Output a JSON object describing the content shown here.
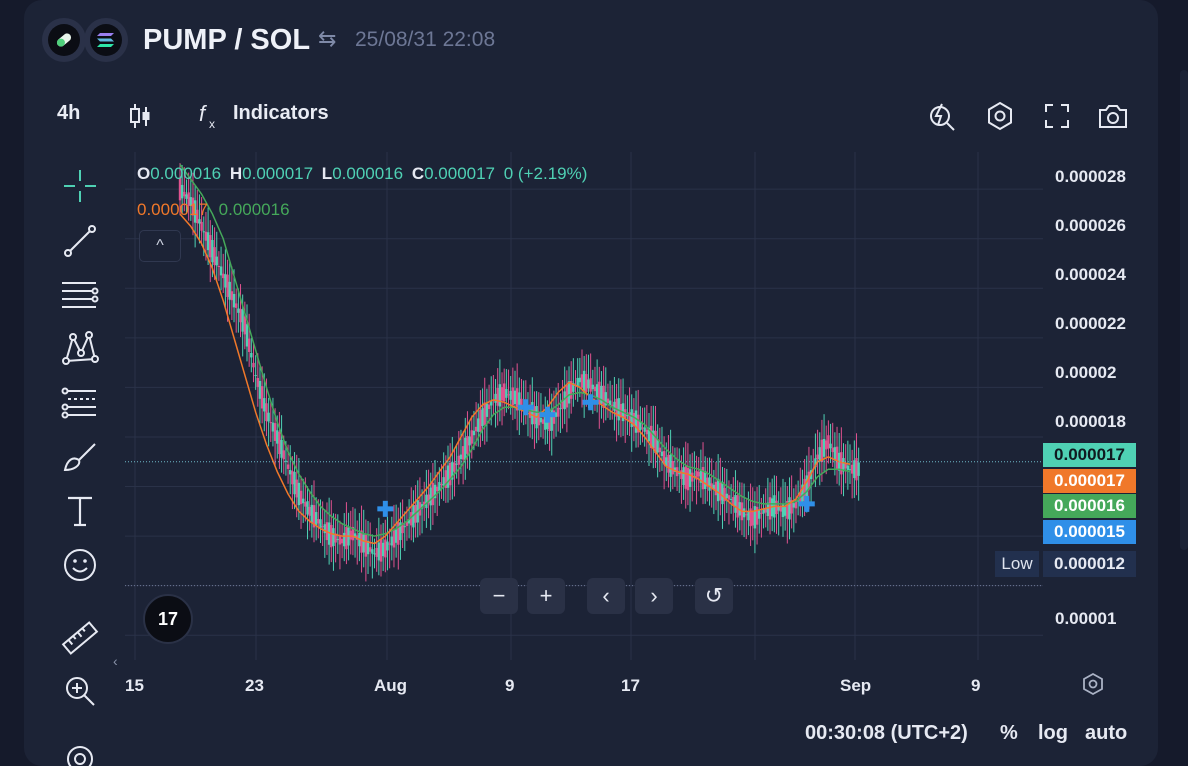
{
  "header": {
    "title": "PUMP / SOL",
    "swap_icon": "⇆",
    "timestamp": "25/08/31 22:08"
  },
  "toolbar": {
    "interval": "4h",
    "indicators_label": "Indicators",
    "icons": [
      "candles-icon",
      "fx-icon",
      "alert-icon",
      "settings-icon",
      "fullscreen-icon",
      "camera-icon"
    ]
  },
  "legend": {
    "o_label": "O",
    "o_value": "0.000016",
    "h_label": "H",
    "h_value": "0.000017",
    "l_label": "L",
    "l_value": "0.000016",
    "c_label": "C",
    "c_value": "0.000017",
    "change": "0 (+2.19%)",
    "ma_fast": "0.000017",
    "ma_slow": "0.000016",
    "collapse_icon": "^"
  },
  "y_axis": {
    "ticks": [
      "0.000028",
      "0.000026",
      "0.000024",
      "0.000022",
      "0.00002",
      "0.000018",
      "0.00001"
    ],
    "tags": {
      "price": "0.000017",
      "ma_fast": "0.000017",
      "ma_slow": "0.000016",
      "marker": "0.000015"
    },
    "low_label": "Low",
    "low_value": "0.000012"
  },
  "x_axis": {
    "ticks": [
      "15",
      "23",
      "Aug",
      "9",
      "17",
      "Sep",
      "9"
    ]
  },
  "nav": {
    "zoom_out": "−",
    "zoom_in": "+",
    "prev": "‹",
    "next": "›",
    "reset": "↺"
  },
  "footer": {
    "clock": "00:30:08 (UTC+2)",
    "percent": "%",
    "log": "log",
    "auto": "auto"
  },
  "logo_text": "17",
  "colors": {
    "up": "#4fd1b4",
    "down": "#e0528f",
    "ma_fast": "#f0782a",
    "ma_slow": "#45a85a",
    "marker": "#2f8fe8",
    "price_tag": "#4fd1b4",
    "panel": "#1c2336"
  },
  "chart_data": {
    "type": "candlestick",
    "series": [
      {
        "name": "price",
        "values": [
          2.8e-05,
          2.75e-05,
          2.65e-05,
          2.55e-05,
          2.45e-05,
          2.35e-05,
          2.25e-05,
          2.05e-05,
          1.9e-05,
          1.8e-05,
          1.68e-05,
          1.57e-05,
          1.5e-05,
          1.45e-05,
          1.4e-05,
          1.38e-05,
          1.41e-05,
          1.37e-05,
          1.33e-05,
          1.35e-05,
          1.4e-05,
          1.45e-05,
          1.5e-05,
          1.55e-05,
          1.6e-05,
          1.65e-05,
          1.72e-05,
          1.8e-05,
          1.88e-05,
          1.95e-05,
          1.98e-05,
          1.96e-05,
          1.92e-05,
          1.88e-05,
          1.85e-05,
          1.9e-05,
          1.98e-05,
          2.03e-05,
          2.01e-05,
          1.97e-05,
          1.93e-05,
          1.9e-05,
          1.87e-05,
          1.83e-05,
          1.78e-05,
          1.7e-05,
          1.66e-05,
          1.63e-05,
          1.65e-05,
          1.61e-05,
          1.58e-05,
          1.55e-05,
          1.5e-05,
          1.47e-05,
          1.5e-05,
          1.52e-05,
          1.5e-05,
          1.53e-05,
          1.6e-05,
          1.72e-05,
          1.78e-05,
          1.7e-05,
          1.67e-05
        ]
      },
      {
        "name": "ma_fast",
        "values": [
          2.7e-05,
          2.65e-05,
          2.58e-05,
          2.48e-05,
          2.35e-05,
          2.2e-05,
          2.05e-05,
          1.9e-05,
          1.77e-05,
          1.66e-05,
          1.57e-05,
          1.5e-05,
          1.46e-05,
          1.43e-05,
          1.41e-05,
          1.4e-05,
          1.4e-05,
          1.38e-05,
          1.37e-05,
          1.4e-05,
          1.45e-05,
          1.5e-05,
          1.55e-05,
          1.6e-05,
          1.66e-05,
          1.72e-05,
          1.8e-05,
          1.88e-05,
          1.93e-05,
          1.95e-05,
          1.94e-05,
          1.92e-05,
          1.9e-05,
          1.88e-05,
          1.92e-05,
          1.98e-05,
          2.02e-05,
          2e-05,
          1.96e-05,
          1.93e-05,
          1.9e-05,
          1.88e-05,
          1.85e-05,
          1.8e-05,
          1.74e-05,
          1.68e-05,
          1.66e-05,
          1.65e-05,
          1.63e-05,
          1.6e-05,
          1.57e-05,
          1.53e-05,
          1.5e-05,
          1.5e-05,
          1.51e-05,
          1.52e-05,
          1.52e-05,
          1.55e-05,
          1.62e-05,
          1.7e-05,
          1.72e-05,
          1.7e-05,
          1.69e-05
        ]
      },
      {
        "name": "ma_slow",
        "values": [
          2.9e-05,
          2.84e-05,
          2.78e-05,
          2.7e-05,
          2.6e-05,
          2.45e-05,
          2.3e-05,
          2.15e-05,
          2e-05,
          1.86e-05,
          1.74e-05,
          1.65e-05,
          1.58e-05,
          1.52e-05,
          1.48e-05,
          1.45e-05,
          1.43e-05,
          1.41e-05,
          1.4e-05,
          1.41e-05,
          1.43e-05,
          1.46e-05,
          1.5e-05,
          1.54e-05,
          1.58e-05,
          1.63e-05,
          1.68e-05,
          1.75e-05,
          1.83e-05,
          1.89e-05,
          1.92e-05,
          1.92e-05,
          1.91e-05,
          1.9e-05,
          1.9e-05,
          1.93e-05,
          1.97e-05,
          1.98e-05,
          1.97e-05,
          1.95e-05,
          1.92e-05,
          1.9e-05,
          1.88e-05,
          1.85e-05,
          1.8e-05,
          1.75e-05,
          1.71e-05,
          1.68e-05,
          1.67e-05,
          1.65e-05,
          1.62e-05,
          1.59e-05,
          1.56e-05,
          1.54e-05,
          1.53e-05,
          1.53e-05,
          1.53e-05,
          1.54e-05,
          1.58e-05,
          1.64e-05,
          1.67e-05,
          1.67e-05,
          1.66e-05
        ]
      }
    ],
    "markers": [
      {
        "index": 19,
        "value": 1.51e-05
      },
      {
        "index": 32,
        "value": 1.92e-05
      },
      {
        "index": 34,
        "value": 1.89e-05
      },
      {
        "index": 38,
        "value": 1.94e-05
      },
      {
        "index": 58,
        "value": 1.53e-05
      }
    ],
    "ylim": [
      9e-06,
      2.95e-05
    ],
    "current_price": 1.7e-05,
    "low_value": 1.2e-05
  }
}
